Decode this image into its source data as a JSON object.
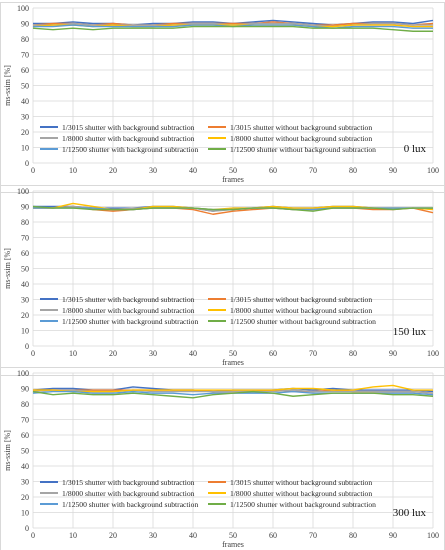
{
  "chart_data": [
    {
      "type": "line",
      "xlabel": "frames",
      "ylabel": "ms-ssim [%]",
      "xlim": [
        0,
        100
      ],
      "ylim": [
        0,
        100
      ],
      "xticks": [
        "0",
        "10",
        "20",
        "30",
        "40",
        "50",
        "60",
        "70",
        "80",
        "90",
        "100"
      ],
      "yticks": [
        "0",
        "10",
        "20",
        "30",
        "40",
        "50",
        "60",
        "70",
        "80",
        "90",
        "100"
      ],
      "grid": true,
      "legend": "bottom-inside, 2 columns",
      "annotation": "0 lux",
      "series": [
        {
          "name": "1/3015 shutter with background subtraction",
          "color": "#4472C4",
          "x": [
            0,
            5,
            10,
            15,
            20,
            25,
            30,
            35,
            40,
            45,
            50,
            55,
            60,
            65,
            70,
            75,
            80,
            85,
            90,
            95,
            100
          ],
          "values": [
            90,
            90,
            91,
            90,
            90,
            89,
            90,
            90,
            91,
            91,
            90,
            91,
            92,
            91,
            90,
            89,
            90,
            91,
            91,
            90,
            92
          ]
        },
        {
          "name": "1/3015 shutter without background subtraction",
          "color": "#ED7D31",
          "x": [
            0,
            5,
            10,
            15,
            20,
            25,
            30,
            35,
            40,
            45,
            50,
            55,
            60,
            65,
            70,
            75,
            80,
            85,
            90,
            95,
            100
          ],
          "values": [
            89,
            90,
            90,
            89,
            90,
            89,
            89,
            90,
            90,
            90,
            90,
            90,
            91,
            90,
            89,
            89,
            90,
            90,
            90,
            89,
            90
          ]
        },
        {
          "name": "1/8000 shutter with background subtraction",
          "color": "#A5A5A5",
          "x": [
            0,
            5,
            10,
            15,
            20,
            25,
            30,
            35,
            40,
            45,
            50,
            55,
            60,
            65,
            70,
            75,
            80,
            85,
            90,
            95,
            100
          ],
          "values": [
            89,
            89,
            90,
            89,
            89,
            89,
            89,
            89,
            90,
            90,
            89,
            90,
            90,
            90,
            89,
            88,
            89,
            90,
            90,
            89,
            89
          ]
        },
        {
          "name": "1/8000 shutter without background subtraction",
          "color": "#FFC000",
          "x": [
            0,
            5,
            10,
            15,
            20,
            25,
            30,
            35,
            40,
            45,
            50,
            55,
            60,
            65,
            70,
            75,
            80,
            85,
            90,
            95,
            100
          ],
          "values": [
            88,
            89,
            89,
            88,
            89,
            88,
            88,
            89,
            89,
            89,
            89,
            89,
            89,
            89,
            88,
            88,
            89,
            89,
            89,
            88,
            88
          ]
        },
        {
          "name": "1/12500 shutter with background subtraction",
          "color": "#5B9BD5",
          "x": [
            0,
            5,
            10,
            15,
            20,
            25,
            30,
            35,
            40,
            45,
            50,
            55,
            60,
            65,
            70,
            75,
            80,
            85,
            90,
            95,
            100
          ],
          "values": [
            88,
            88,
            89,
            88,
            88,
            88,
            88,
            88,
            89,
            89,
            88,
            89,
            89,
            89,
            88,
            87,
            88,
            88,
            88,
            87,
            87
          ]
        },
        {
          "name": "1/12500 shutter without background subtraction",
          "color": "#70AD47",
          "x": [
            0,
            5,
            10,
            15,
            20,
            25,
            30,
            35,
            40,
            45,
            50,
            55,
            60,
            65,
            70,
            75,
            80,
            85,
            90,
            95,
            100
          ],
          "values": [
            87,
            86,
            87,
            86,
            87,
            87,
            87,
            87,
            88,
            88,
            88,
            88,
            88,
            88,
            87,
            87,
            87,
            87,
            86,
            85,
            85
          ]
        }
      ]
    },
    {
      "type": "line",
      "xlabel": "frames",
      "ylabel": "ms-ssim [%]",
      "xlim": [
        0,
        100
      ],
      "ylim": [
        0,
        100
      ],
      "xticks": [
        "0",
        "10",
        "20",
        "30",
        "40",
        "50",
        "60",
        "70",
        "80",
        "90",
        "100"
      ],
      "yticks": [
        "0",
        "10",
        "20",
        "30",
        "40",
        "50",
        "60",
        "70",
        "80",
        "90",
        "100"
      ],
      "grid": true,
      "legend": "bottom-inside, 2 columns",
      "annotation": "150 lux",
      "series": [
        {
          "name": "1/3015 shutter with background subtraction",
          "color": "#4472C4",
          "x": [
            0,
            5,
            10,
            15,
            20,
            25,
            30,
            35,
            40,
            45,
            50,
            55,
            60,
            65,
            70,
            75,
            80,
            85,
            90,
            95,
            100
          ],
          "values": [
            90,
            90,
            90,
            89,
            89,
            89,
            90,
            90,
            89,
            87,
            89,
            89,
            90,
            89,
            89,
            90,
            90,
            89,
            89,
            89,
            89
          ]
        },
        {
          "name": "1/3015 shutter without background subtraction",
          "color": "#ED7D31",
          "x": [
            0,
            5,
            10,
            15,
            20,
            25,
            30,
            35,
            40,
            45,
            50,
            55,
            60,
            65,
            70,
            75,
            80,
            85,
            90,
            95,
            100
          ],
          "values": [
            89,
            89,
            90,
            88,
            87,
            88,
            89,
            89,
            88,
            85,
            87,
            88,
            89,
            88,
            88,
            89,
            89,
            88,
            88,
            89,
            86
          ]
        },
        {
          "name": "1/8000 shutter with background subtraction",
          "color": "#A5A5A5",
          "x": [
            0,
            5,
            10,
            15,
            20,
            25,
            30,
            35,
            40,
            45,
            50,
            55,
            60,
            65,
            70,
            75,
            80,
            85,
            90,
            95,
            100
          ],
          "values": [
            89,
            89,
            90,
            89,
            88,
            89,
            89,
            89,
            89,
            87,
            88,
            89,
            89,
            89,
            89,
            89,
            89,
            89,
            89,
            89,
            89
          ]
        },
        {
          "name": "1/8000 shutter without background subtraction",
          "color": "#FFC000",
          "x": [
            0,
            5,
            10,
            15,
            20,
            25,
            30,
            35,
            40,
            45,
            50,
            55,
            60,
            65,
            70,
            75,
            80,
            85,
            90,
            95,
            100
          ],
          "values": [
            89,
            89,
            92,
            90,
            88,
            88,
            90,
            90,
            89,
            88,
            89,
            89,
            90,
            89,
            89,
            90,
            90,
            89,
            89,
            89,
            88
          ]
        },
        {
          "name": "1/12500 shutter with background subtraction",
          "color": "#5B9BD5",
          "x": [
            0,
            5,
            10,
            15,
            20,
            25,
            30,
            35,
            40,
            45,
            50,
            55,
            60,
            65,
            70,
            75,
            80,
            85,
            90,
            95,
            100
          ],
          "values": [
            89,
            89,
            89,
            89,
            88,
            88,
            89,
            89,
            89,
            88,
            88,
            89,
            89,
            88,
            88,
            89,
            89,
            89,
            89,
            89,
            89
          ]
        },
        {
          "name": "1/12500 shutter without background subtraction",
          "color": "#70AD47",
          "x": [
            0,
            5,
            10,
            15,
            20,
            25,
            30,
            35,
            40,
            45,
            50,
            55,
            60,
            65,
            70,
            75,
            80,
            85,
            90,
            95,
            100
          ],
          "values": [
            90,
            89,
            89,
            88,
            88,
            88,
            89,
            89,
            89,
            88,
            88,
            89,
            89,
            88,
            87,
            89,
            89,
            89,
            88,
            89,
            89
          ]
        }
      ]
    },
    {
      "type": "line",
      "xlabel": "frames",
      "ylabel": "ms-ssim [%]",
      "xlim": [
        0,
        100
      ],
      "ylim": [
        0,
        100
      ],
      "xticks": [
        "0",
        "10",
        "20",
        "30",
        "40",
        "50",
        "60",
        "70",
        "80",
        "90",
        "100"
      ],
      "yticks": [
        "0",
        "10",
        "20",
        "30",
        "40",
        "50",
        "60",
        "70",
        "80",
        "90",
        "100"
      ],
      "grid": true,
      "legend": "bottom-inside, 2 columns",
      "annotation": "300 lux",
      "series": [
        {
          "name": "1/3015 shutter with background subtraction",
          "color": "#4472C4",
          "x": [
            0,
            5,
            10,
            15,
            20,
            25,
            30,
            35,
            40,
            45,
            50,
            55,
            60,
            65,
            70,
            75,
            80,
            85,
            90,
            95,
            100
          ],
          "values": [
            89,
            90,
            90,
            89,
            89,
            91,
            90,
            89,
            89,
            88,
            89,
            89,
            89,
            90,
            89,
            90,
            89,
            89,
            89,
            89,
            88
          ]
        },
        {
          "name": "1/3015 shutter without background subtraction",
          "color": "#ED7D31",
          "x": [
            0,
            5,
            10,
            15,
            20,
            25,
            30,
            35,
            40,
            45,
            50,
            55,
            60,
            65,
            70,
            75,
            80,
            85,
            90,
            95,
            100
          ],
          "values": [
            89,
            89,
            89,
            89,
            89,
            89,
            89,
            89,
            89,
            88,
            88,
            88,
            89,
            88,
            88,
            89,
            88,
            88,
            88,
            88,
            87
          ]
        },
        {
          "name": "1/8000 shutter with background subtraction",
          "color": "#A5A5A5",
          "x": [
            0,
            5,
            10,
            15,
            20,
            25,
            30,
            35,
            40,
            45,
            50,
            55,
            60,
            65,
            70,
            75,
            80,
            85,
            90,
            95,
            100
          ],
          "values": [
            88,
            89,
            89,
            88,
            88,
            89,
            88,
            88,
            88,
            88,
            88,
            88,
            88,
            89,
            88,
            88,
            88,
            88,
            88,
            88,
            87
          ]
        },
        {
          "name": "1/8000 shutter without background subtraction",
          "color": "#FFC000",
          "x": [
            0,
            5,
            10,
            15,
            20,
            25,
            30,
            35,
            40,
            45,
            50,
            55,
            60,
            65,
            70,
            75,
            80,
            85,
            90,
            95,
            100
          ],
          "values": [
            89,
            89,
            88,
            88,
            88,
            89,
            89,
            89,
            89,
            89,
            89,
            89,
            89,
            90,
            90,
            89,
            89,
            91,
            92,
            89,
            89
          ]
        },
        {
          "name": "1/12500 shutter with background subtraction",
          "color": "#5B9BD5",
          "x": [
            0,
            5,
            10,
            15,
            20,
            25,
            30,
            35,
            40,
            45,
            50,
            55,
            60,
            65,
            70,
            75,
            80,
            85,
            90,
            95,
            100
          ],
          "values": [
            87,
            88,
            88,
            87,
            87,
            88,
            87,
            87,
            86,
            87,
            87,
            87,
            87,
            88,
            87,
            87,
            87,
            87,
            87,
            87,
            86
          ]
        },
        {
          "name": "1/12500 shutter without background subtraction",
          "color": "#70AD47",
          "x": [
            0,
            5,
            10,
            15,
            20,
            25,
            30,
            35,
            40,
            45,
            50,
            55,
            60,
            65,
            70,
            75,
            80,
            85,
            90,
            95,
            100
          ],
          "values": [
            88,
            86,
            87,
            86,
            86,
            87,
            86,
            85,
            84,
            86,
            87,
            88,
            87,
            85,
            86,
            87,
            87,
            87,
            86,
            86,
            85
          ]
        }
      ]
    }
  ]
}
